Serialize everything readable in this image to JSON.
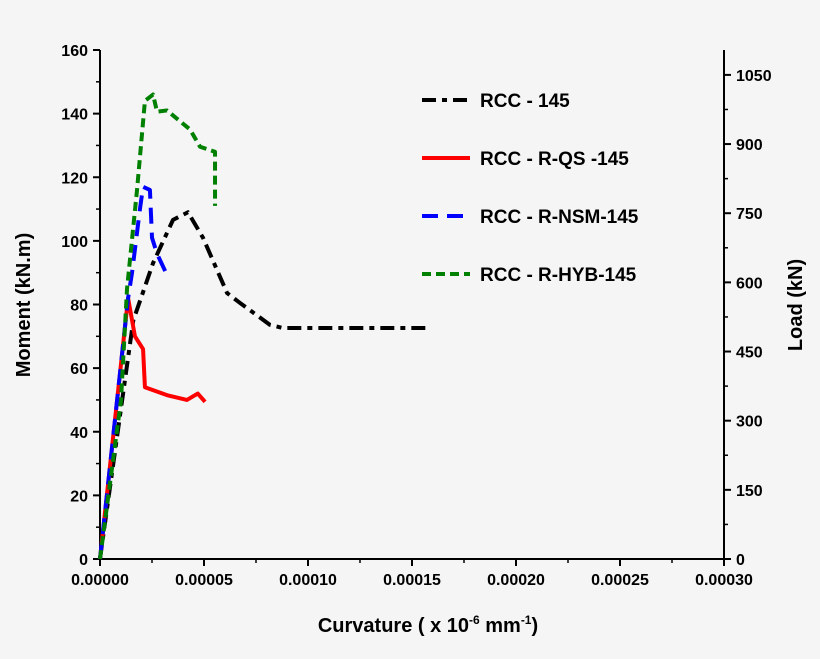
{
  "chart_data": {
    "type": "line",
    "xlabel": {
      "main": "Curvature ( x 10",
      "sup1": "-6",
      "mid": " mm",
      "sup2": "-1",
      "end": ")"
    },
    "ylabel": "Moment (kN.m)",
    "y2label": "Load (kN)",
    "xlim": [
      0,
      0.0003
    ],
    "ylim": [
      0,
      160
    ],
    "y2lim": [
      0,
      1104
    ],
    "x_ticks": [
      "0.00000",
      "0.00005",
      "0.00010",
      "0.00015",
      "0.00020",
      "0.00025",
      "0.00030"
    ],
    "y_ticks": [
      "0",
      "20",
      "40",
      "60",
      "80",
      "100",
      "120",
      "140",
      "160"
    ],
    "y2_ticks": [
      "0",
      "150",
      "300",
      "450",
      "600",
      "750",
      "900",
      "1050"
    ],
    "grid": false,
    "legend_position": "top-right",
    "series": [
      {
        "name": "RCC - 145",
        "color": "#000000",
        "style": "dash-dot",
        "x": [
          0,
          1.6e-05,
          2.55e-05,
          3.51e-05,
          4.23e-05,
          4.95e-05,
          6.11e-05,
          6.73e-05,
          8.17e-05,
          8.8e-05,
          0.000159
        ],
        "y": [
          0,
          75,
          93,
          106.6,
          109,
          101,
          83.6,
          80.5,
          73.6,
          72.6,
          72.6
        ]
      },
      {
        "name": "RCC - R-QS -145",
        "color": "#ff0000",
        "style": "solid",
        "x": [
          0,
          1.35e-05,
          1.68e-05,
          2.07e-05,
          2.16e-05,
          3.22e-05,
          4.18e-05,
          4.7e-05,
          5.05e-05
        ],
        "y": [
          0,
          82,
          70,
          66,
          54,
          51.5,
          50,
          52,
          49.4
        ]
      },
      {
        "name": "RCC - R-NSM-145",
        "color": "#0000ff",
        "style": "long-dash",
        "x": [
          0,
          1.35e-05,
          1.54e-05,
          1.92e-05,
          2.07e-05,
          2.4e-05,
          2.5e-05,
          2.74e-05,
          3.17e-05
        ],
        "y": [
          0,
          82,
          90,
          110,
          117,
          116,
          101,
          96,
          90
        ]
      },
      {
        "name": "RCC - R-HYB-145",
        "color": "#008000",
        "style": "short-dash",
        "x": [
          0,
          1.01e-05,
          1.3e-05,
          1.78e-05,
          2.16e-05,
          2.55e-05,
          2.74e-05,
          3.22e-05,
          4.33e-05,
          4.81e-05,
          5.53e-05,
          5.53e-05
        ],
        "y": [
          0,
          50,
          85,
          116,
          144,
          146,
          140.6,
          141,
          135,
          129.6,
          128,
          111
        ]
      }
    ]
  }
}
